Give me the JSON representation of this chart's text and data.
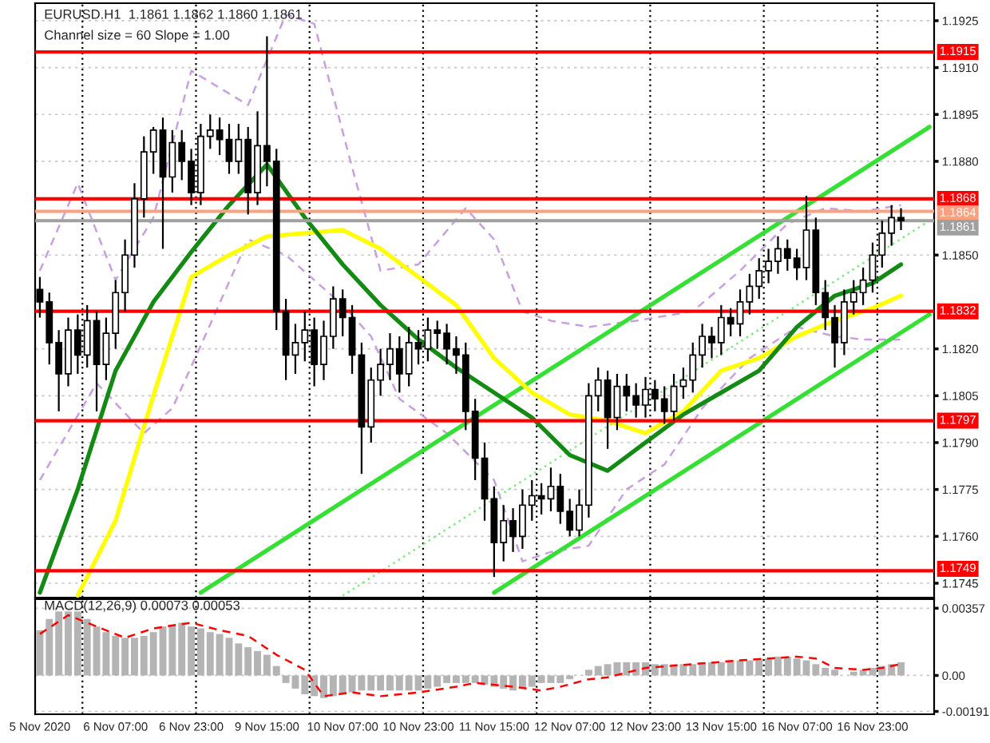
{
  "chart_data": [
    {
      "type": "candlestick",
      "title": "EURUSD.H1  1.1861 1.1862 1.1860 1.1861",
      "subtitle": "Channel size = 60 Slope = 1.00",
      "color": "#000000",
      "categories": [
        null,
        null,
        null,
        null,
        null,
        null,
        null,
        null,
        null,
        null,
        null,
        null,
        null,
        null,
        null,
        null,
        null,
        null,
        null,
        null,
        null,
        null,
        null,
        null,
        null,
        null,
        null,
        null,
        null,
        null,
        null,
        null,
        null,
        null,
        null,
        null,
        null,
        null,
        null,
        null,
        null,
        null,
        null,
        null,
        null,
        null,
        null,
        null,
        null,
        null,
        null,
        null,
        null,
        null,
        null,
        null,
        null,
        null,
        null,
        null,
        null,
        null,
        null,
        null,
        null,
        null,
        null,
        null,
        null,
        null,
        null,
        null,
        null,
        null,
        null,
        null,
        null,
        null,
        null,
        null,
        null,
        null,
        null,
        null,
        null,
        null,
        null,
        null,
        null,
        null,
        null,
        null,
        null,
        null,
        null
      ],
      "ohlc": [
        [
          1.1839,
          1.1843,
          1.183,
          1.1835
        ],
        [
          1.1835,
          1.1838,
          1.1815,
          1.1822
        ],
        [
          1.1822,
          1.1826,
          1.18,
          1.1812
        ],
        [
          1.1812,
          1.183,
          1.1808,
          1.1826
        ],
        [
          1.1826,
          1.1831,
          1.1812,
          1.1818
        ],
        [
          1.1818,
          1.1834,
          1.1814,
          1.1829
        ],
        [
          1.1829,
          1.1832,
          1.18,
          1.1815
        ],
        [
          1.1815,
          1.183,
          1.181,
          1.1825
        ],
        [
          1.1825,
          1.1842,
          1.182,
          1.1838
        ],
        [
          1.1838,
          1.1855,
          1.1832,
          1.185
        ],
        [
          1.185,
          1.1873,
          1.1846,
          1.1868
        ],
        [
          1.1868,
          1.1888,
          1.1862,
          1.1883
        ],
        [
          1.1883,
          1.1891,
          1.1876,
          1.189
        ],
        [
          1.189,
          1.1894,
          1.1852,
          1.1875
        ],
        [
          1.1875,
          1.189,
          1.187,
          1.1886
        ],
        [
          1.1886,
          1.189,
          1.1874,
          1.188
        ],
        [
          1.188,
          1.1884,
          1.1866,
          1.187
        ],
        [
          1.187,
          1.1892,
          1.1866,
          1.1888
        ],
        [
          1.1888,
          1.1895,
          1.1884,
          1.189
        ],
        [
          1.189,
          1.1894,
          1.1882,
          1.1887
        ],
        [
          1.1887,
          1.1892,
          1.1876,
          1.188
        ],
        [
          1.188,
          1.1892,
          1.1876,
          1.1887
        ],
        [
          1.1887,
          1.1891,
          1.1863,
          1.187
        ],
        [
          1.187,
          1.1896,
          1.1866,
          1.1885
        ],
        [
          1.1885,
          1.192,
          1.1872,
          1.188
        ],
        [
          1.188,
          1.1884,
          1.1826,
          1.1832
        ],
        [
          1.1832,
          1.1836,
          1.181,
          1.1818
        ],
        [
          1.1818,
          1.1828,
          1.1812,
          1.1822
        ],
        [
          1.1822,
          1.1832,
          1.1816,
          1.1826
        ],
        [
          1.1826,
          1.183,
          1.1808,
          1.1815
        ],
        [
          1.1815,
          1.1829,
          1.181,
          1.1824
        ],
        [
          1.1824,
          1.184,
          1.182,
          1.1836
        ],
        [
          1.1836,
          1.1839,
          1.1824,
          1.183
        ],
        [
          1.183,
          1.1834,
          1.1812,
          1.1818
        ],
        [
          1.1818,
          1.1822,
          1.178,
          1.1795
        ],
        [
          1.1795,
          1.1814,
          1.179,
          1.181
        ],
        [
          1.181,
          1.182,
          1.1805,
          1.1815
        ],
        [
          1.1815,
          1.1825,
          1.181,
          1.182
        ],
        [
          1.182,
          1.1824,
          1.1806,
          1.1812
        ],
        [
          1.1812,
          1.1827,
          1.1808,
          1.1822
        ],
        [
          1.1822,
          1.1826,
          1.1815,
          1.182
        ],
        [
          1.182,
          1.183,
          1.1816,
          1.1826
        ],
        [
          1.1826,
          1.1829,
          1.182,
          1.1825
        ],
        [
          1.1825,
          1.1828,
          1.1815,
          1.182
        ],
        [
          1.182,
          1.1824,
          1.1812,
          1.1818
        ],
        [
          1.1818,
          1.1822,
          1.1794,
          1.18
        ],
        [
          1.18,
          1.1804,
          1.1778,
          1.1785
        ],
        [
          1.1785,
          1.179,
          1.1765,
          1.1772
        ],
        [
          1.1772,
          1.1776,
          1.1747,
          1.1758
        ],
        [
          1.1758,
          1.177,
          1.1752,
          1.1765
        ],
        [
          1.1765,
          1.1769,
          1.1755,
          1.176
        ],
        [
          1.176,
          1.1775,
          1.1756,
          1.177
        ],
        [
          1.177,
          1.1778,
          1.1765,
          1.1773
        ],
        [
          1.1773,
          1.1777,
          1.1767,
          1.1772
        ],
        [
          1.1772,
          1.1782,
          1.1768,
          1.1776
        ],
        [
          1.1776,
          1.178,
          1.1764,
          1.1768
        ],
        [
          1.1768,
          1.1772,
          1.176,
          1.1762
        ],
        [
          1.1762,
          1.1775,
          1.176,
          1.177
        ],
        [
          1.177,
          1.1809,
          1.1766,
          1.1805
        ],
        [
          1.1805,
          1.1814,
          1.18,
          1.181
        ],
        [
          1.181,
          1.1813,
          1.1788,
          1.1798
        ],
        [
          1.1798,
          1.1812,
          1.1794,
          1.1808
        ],
        [
          1.1808,
          1.1812,
          1.18,
          1.1805
        ],
        [
          1.1805,
          1.1809,
          1.1798,
          1.1802
        ],
        [
          1.1802,
          1.1811,
          1.1798,
          1.1807
        ],
        [
          1.1807,
          1.181,
          1.18,
          1.1804
        ],
        [
          1.1804,
          1.1808,
          1.1796,
          1.18
        ],
        [
          1.18,
          1.1812,
          1.1797,
          1.1808
        ],
        [
          1.1808,
          1.1814,
          1.1804,
          1.181
        ],
        [
          1.181,
          1.1822,
          1.1806,
          1.1818
        ],
        [
          1.1818,
          1.1828,
          1.1814,
          1.1824
        ],
        [
          1.1824,
          1.1827,
          1.1817,
          1.1822
        ],
        [
          1.1822,
          1.1834,
          1.1818,
          1.183
        ],
        [
          1.183,
          1.1833,
          1.1824,
          1.1828
        ],
        [
          1.1828,
          1.1839,
          1.1824,
          1.1835
        ],
        [
          1.1835,
          1.1844,
          1.1831,
          1.184
        ],
        [
          1.184,
          1.1849,
          1.1836,
          1.1845
        ],
        [
          1.1845,
          1.1852,
          1.1841,
          1.1848
        ],
        [
          1.1848,
          1.1856,
          1.1844,
          1.1852
        ],
        [
          1.1852,
          1.1855,
          1.1845,
          1.1849
        ],
        [
          1.1849,
          1.1852,
          1.1842,
          1.1846
        ],
        [
          1.1846,
          1.1869,
          1.1842,
          1.1858
        ],
        [
          1.1858,
          1.1862,
          1.1834,
          1.1838
        ],
        [
          1.1838,
          1.1842,
          1.1826,
          1.183
        ],
        [
          1.183,
          1.1834,
          1.1814,
          1.1822
        ],
        [
          1.1822,
          1.1839,
          1.1818,
          1.1835
        ],
        [
          1.1835,
          1.1842,
          1.1831,
          1.1838
        ],
        [
          1.1838,
          1.1846,
          1.1834,
          1.1842
        ],
        [
          1.1842,
          1.1854,
          1.1838,
          1.185
        ],
        [
          1.185,
          1.1861,
          1.1846,
          1.1857
        ],
        [
          1.1857,
          1.1866,
          1.1853,
          1.1862
        ],
        [
          1.1862,
          1.1865,
          1.1858,
          1.1861
        ],
        null,
        null,
        null
      ],
      "series": [
        {
          "type": "line",
          "color": "#c8a0e0",
          "line_style": "dashed",
          "values": [
            1.1845,
            null,
            null,
            null,
            1.1873,
            null,
            null,
            null,
            1.1842,
            null,
            null,
            null,
            1.1862,
            null,
            null,
            null,
            1.1909,
            null,
            null,
            null,
            null,
            null,
            1.1898,
            null,
            null,
            null,
            1.1927,
            null,
            null,
            1.1924,
            null,
            null,
            null,
            1.1878,
            null,
            null,
            1.1845,
            null,
            null,
            null,
            1.1847,
            null,
            null,
            null,
            null,
            1.1865,
            null,
            null,
            1.1855,
            null,
            null,
            1.1832,
            null,
            null,
            1.1829,
            null,
            null,
            null,
            1.1827,
            null,
            null,
            null,
            null,
            1.1829,
            null,
            null,
            null,
            null,
            null,
            1.1832,
            null,
            null,
            null,
            null,
            1.1845,
            null,
            null,
            null,
            null,
            1.186,
            null,
            null,
            null,
            1.1865,
            null,
            null,
            null,
            1.1864,
            null,
            null,
            null,
            1.1866,
            null,
            null,
            null
          ]
        },
        {
          "type": "line",
          "color": "#c8a0e0",
          "line_style": "dashed",
          "values": [
            1.1778,
            null,
            null,
            null,
            null,
            null,
            1.1809,
            null,
            null,
            null,
            null,
            1.1793,
            null,
            null,
            1.1801,
            null,
            null,
            1.1821,
            null,
            null,
            null,
            null,
            1.1855,
            null,
            null,
            null,
            1.185,
            null,
            null,
            1.1842,
            null,
            null,
            1.1834,
            null,
            null,
            1.1824,
            null,
            null,
            1.1804,
            null,
            null,
            null,
            null,
            1.1793,
            null,
            null,
            null,
            null,
            1.1778,
            null,
            null,
            1.1752,
            null,
            null,
            1.1755,
            null,
            null,
            null,
            1.1757,
            null,
            null,
            null,
            1.1775,
            null,
            null,
            null,
            1.1783,
            null,
            null,
            null,
            1.1801,
            null,
            null,
            null,
            null,
            1.1817,
            null,
            null,
            null,
            null,
            1.1827,
            null,
            null,
            null,
            1.1824,
            null,
            null,
            1.1823,
            null,
            null,
            null,
            1.1823,
            null,
            null,
            null
          ]
        },
        {
          "type": "line",
          "color": "#33e033",
          "line_style": "solid",
          "values": [
            null,
            null,
            null,
            null,
            null,
            null,
            null,
            null,
            null,
            null,
            null,
            null,
            null,
            null,
            null,
            null,
            null,
            1.1742,
            null,
            null,
            null,
            null,
            null,
            null,
            null,
            null,
            null,
            null,
            null,
            null,
            null,
            null,
            null,
            null,
            null,
            null,
            null,
            null,
            null,
            null,
            null,
            null,
            null,
            null,
            null,
            null,
            null,
            null,
            null,
            null,
            null,
            null,
            null,
            null,
            null,
            null,
            null,
            null,
            null,
            null,
            null,
            null,
            null,
            null,
            null,
            null,
            null,
            null,
            null,
            null,
            null,
            null,
            null,
            null,
            null,
            null,
            null,
            null,
            null,
            null,
            null,
            null,
            null,
            null,
            null,
            null,
            null,
            null,
            null,
            null,
            null,
            null,
            null,
            null,
            1.1891
          ]
        },
        {
          "type": "line",
          "color": "#33e033",
          "line_style": "solid",
          "values": [
            null,
            null,
            null,
            null,
            null,
            null,
            null,
            null,
            null,
            null,
            null,
            null,
            null,
            null,
            null,
            null,
            null,
            null,
            null,
            null,
            null,
            null,
            null,
            null,
            null,
            null,
            null,
            null,
            null,
            null,
            null,
            null,
            null,
            null,
            null,
            null,
            null,
            null,
            null,
            null,
            null,
            null,
            null,
            null,
            null,
            null,
            null,
            null,
            1.1742,
            null,
            null,
            null,
            null,
            null,
            null,
            null,
            null,
            null,
            null,
            null,
            null,
            null,
            null,
            null,
            null,
            null,
            null,
            null,
            null,
            null,
            null,
            null,
            null,
            null,
            null,
            null,
            null,
            null,
            null,
            null,
            null,
            null,
            null,
            null,
            null,
            null,
            null,
            null,
            null,
            null,
            null,
            null,
            null,
            null,
            1.1831
          ]
        },
        {
          "type": "line",
          "color": "#7ee87e",
          "line_style": "dotted",
          "values": [
            null,
            null,
            null,
            null,
            null,
            null,
            null,
            null,
            null,
            null,
            null,
            null,
            null,
            null,
            null,
            null,
            null,
            null,
            null,
            null,
            null,
            null,
            null,
            null,
            null,
            null,
            null,
            null,
            null,
            null,
            null,
            null,
            1.1741,
            null,
            null,
            null,
            null,
            null,
            null,
            null,
            null,
            null,
            null,
            null,
            null,
            null,
            null,
            null,
            null,
            null,
            null,
            null,
            null,
            null,
            null,
            null,
            null,
            null,
            null,
            null,
            null,
            null,
            null,
            null,
            null,
            null,
            null,
            null,
            null,
            null,
            null,
            null,
            null,
            null,
            null,
            null,
            null,
            null,
            null,
            null,
            null,
            null,
            null,
            null,
            null,
            null,
            null,
            null,
            null,
            null,
            null,
            null,
            null,
            null,
            1.1861
          ]
        },
        {
          "type": "line",
          "color": "#ffff00",
          "line_style": "solid",
          "values": [
            null,
            null,
            null,
            null,
            1.1741,
            null,
            null,
            null,
            1.1765,
            null,
            null,
            null,
            1.1805,
            null,
            null,
            null,
            1.1843,
            null,
            null,
            null,
            1.185,
            null,
            null,
            null,
            1.1856,
            null,
            null,
            null,
            1.1857,
            null,
            null,
            null,
            1.1858,
            null,
            null,
            null,
            1.1852,
            null,
            null,
            null,
            1.1843,
            null,
            null,
            null,
            1.1834,
            null,
            null,
            null,
            1.1817,
            null,
            null,
            null,
            1.1806,
            null,
            null,
            null,
            1.1799,
            null,
            null,
            null,
            1.1797,
            null,
            null,
            null,
            1.1793,
            null,
            null,
            null,
            1.18,
            null,
            null,
            null,
            1.1813,
            null,
            null,
            null,
            1.1817,
            null,
            null,
            null,
            1.1824,
            null,
            null,
            null,
            1.1829,
            null,
            null,
            null,
            1.1833,
            null,
            null,
            1.1837,
            null,
            null,
            null
          ]
        },
        {
          "type": "line",
          "color": "#138a13",
          "line_style": "solid",
          "values": [
            1.1742,
            null,
            null,
            null,
            1.1775,
            null,
            null,
            null,
            1.1813,
            null,
            null,
            null,
            1.1835,
            null,
            null,
            null,
            1.1851,
            null,
            null,
            null,
            1.1866,
            null,
            null,
            null,
            1.1879,
            null,
            null,
            null,
            1.1862,
            null,
            null,
            null,
            1.1847,
            null,
            null,
            null,
            1.1834,
            null,
            null,
            null,
            1.1823,
            null,
            null,
            null,
            1.1814,
            null,
            null,
            null,
            1.1806,
            null,
            null,
            null,
            1.1798,
            null,
            null,
            null,
            1.1786,
            null,
            null,
            null,
            1.1781,
            null,
            null,
            null,
            1.179,
            null,
            null,
            null,
            1.1799,
            null,
            null,
            null,
            1.1806,
            null,
            null,
            null,
            1.1813,
            null,
            null,
            null,
            1.1827,
            null,
            null,
            null,
            1.1837,
            null,
            null,
            null,
            1.1841,
            null,
            null,
            1.1847,
            null,
            null,
            null
          ]
        }
      ],
      "ref_lines": [
        {
          "axis": "y",
          "value": 1.1915,
          "label": "1.1915",
          "color": "#ff0000"
        },
        {
          "axis": "y",
          "value": 1.1868,
          "label": "1.1868",
          "color": "#ff0000"
        },
        {
          "axis": "y",
          "value": 1.1864,
          "label": "1.1864",
          "color": "#ff9f80"
        },
        {
          "axis": "y",
          "value": 1.1861,
          "label": "1.1861",
          "color": "#a0a0a0"
        },
        {
          "axis": "y",
          "value": 1.1832,
          "label": "1.1832",
          "color": "#ff0000"
        },
        {
          "axis": "y",
          "value": 1.1797,
          "label": "1.1797",
          "color": "#ff0000"
        },
        {
          "axis": "y",
          "value": 1.1749,
          "label": "1.1749",
          "color": "#ff0000"
        }
      ],
      "ylim": [
        1.17404,
        1.19306
      ],
      "yticks": [
        1.1925,
        {
          "value": 1.191,
          "label": "1.1910"
        },
        1.1895,
        {
          "value": 1.188,
          "label": "1.1880"
        },
        {
          "value": 1.185,
          "label": "1.1850"
        },
        {
          "value": 1.182,
          "label": "1.1820"
        },
        1.1805,
        {
          "value": 1.179,
          "label": "1.1790"
        },
        1.1775,
        {
          "value": 1.176,
          "label": "1.1760"
        },
        1.1745
      ],
      "tick_labels": "y",
      "grid": "y"
    },
    {
      "type": "bar",
      "title": "MACD(12,26,9) 0.00073 0.00053",
      "categories": [
        "5 Nov 2020",
        null,
        null,
        null,
        null,
        null,
        null,
        null,
        "6 Nov 07:00",
        null,
        null,
        null,
        null,
        null,
        null,
        null,
        "6 Nov 23:00",
        null,
        null,
        null,
        null,
        null,
        null,
        null,
        "9 Nov 15:00",
        null,
        null,
        null,
        null,
        null,
        null,
        null,
        "10 Nov 07:00",
        null,
        null,
        null,
        null,
        null,
        null,
        null,
        "10 Nov 23:00",
        null,
        null,
        null,
        null,
        null,
        null,
        null,
        "11 Nov 15:00",
        null,
        null,
        null,
        null,
        null,
        null,
        null,
        "12 Nov 07:00",
        null,
        null,
        null,
        null,
        null,
        null,
        null,
        "12 Nov 23:00",
        null,
        null,
        null,
        null,
        null,
        null,
        null,
        "13 Nov 15:00",
        null,
        null,
        null,
        null,
        null,
        null,
        null,
        "16 Nov 07:00",
        null,
        null,
        null,
        null,
        null,
        null,
        null,
        "16 Nov 23:00",
        null,
        null,
        null,
        null,
        null,
        null
      ],
      "series": [
        {
          "type": "bar",
          "color": "#b4b4b4",
          "values": [
            0.0024,
            0.003,
            0.0034,
            0.0034,
            0.0034,
            0.003,
            0.0026,
            0.0023,
            0.0021,
            0.002,
            0.002,
            0.0021,
            0.0023,
            0.0026,
            0.0027,
            0.0028,
            0.0026,
            0.0025,
            0.0023,
            0.0022,
            0.002,
            0.0017,
            0.0015,
            0.0013,
            0.0011,
            0.0005,
            -0.0004,
            -0.0007,
            -0.001,
            -0.0011,
            -0.0012,
            -0.0011,
            -0.001,
            -0.0009,
            -0.0008,
            -0.0008,
            -0.0008,
            -0.0008,
            -0.0008,
            -0.0008,
            -0.0008,
            -0.0007,
            -0.0006,
            -0.0004,
            -0.0004,
            -0.0004,
            -0.0004,
            -0.0005,
            -0.0006,
            -0.0007,
            -0.0008,
            -0.0007,
            -0.0006,
            -0.0004,
            -0.0004,
            -0.0004,
            -0.0002,
            null,
            0.0003,
            0.0005,
            0.0006,
            0.0007,
            0.0007,
            0.0007,
            0.0007,
            0.0006,
            0.0006,
            0.0006,
            0.0006,
            0.0006,
            0.0007,
            0.0007,
            0.0007,
            0.0008,
            0.0008,
            0.0008,
            0.0009,
            0.0009,
            0.001,
            0.001,
            0.0009,
            0.0008,
            0.0006,
            0.0004,
            0.0003,
            null,
            0.0002,
            0.0003,
            0.0004,
            0.0005,
            0.0006,
            0.0007,
            null,
            null,
            null
          ]
        },
        {
          "type": "line",
          "color": "#ff0000",
          "line_style": "dashed",
          "values": [
            0.0022,
            null,
            null,
            0.0032,
            null,
            0.0028,
            null,
            null,
            null,
            0.002,
            null,
            null,
            0.0025,
            null,
            null,
            null,
            0.0028,
            null,
            null,
            0.0024,
            null,
            null,
            0.0021,
            null,
            null,
            0.0011,
            null,
            null,
            0.0003,
            null,
            -0.0011,
            null,
            null,
            -0.0009,
            null,
            null,
            -0.0011,
            null,
            null,
            null,
            -0.0009,
            null,
            null,
            null,
            -0.0006,
            null,
            -0.0004,
            null,
            null,
            null,
            -0.0006,
            null,
            null,
            -0.0008,
            null,
            -0.0006,
            null,
            null,
            -0.0002,
            null,
            -0.0001,
            null,
            null,
            null,
            0.0004,
            null,
            null,
            null,
            null,
            0.0006,
            null,
            null,
            null,
            null,
            0.0008,
            null,
            null,
            0.0009,
            null,
            null,
            0.001,
            null,
            0.0009,
            null,
            0.0004,
            null,
            null,
            0.0003,
            null,
            0.0004,
            null,
            0.0006,
            null,
            null,
            null
          ]
        }
      ],
      "ylim": [
        -0.00206,
        0.00405
      ],
      "yticks": [
        0.00357,
        {
          "value": 0,
          "label": "0.00"
        },
        -0.00191
      ],
      "grid": "y"
    }
  ]
}
